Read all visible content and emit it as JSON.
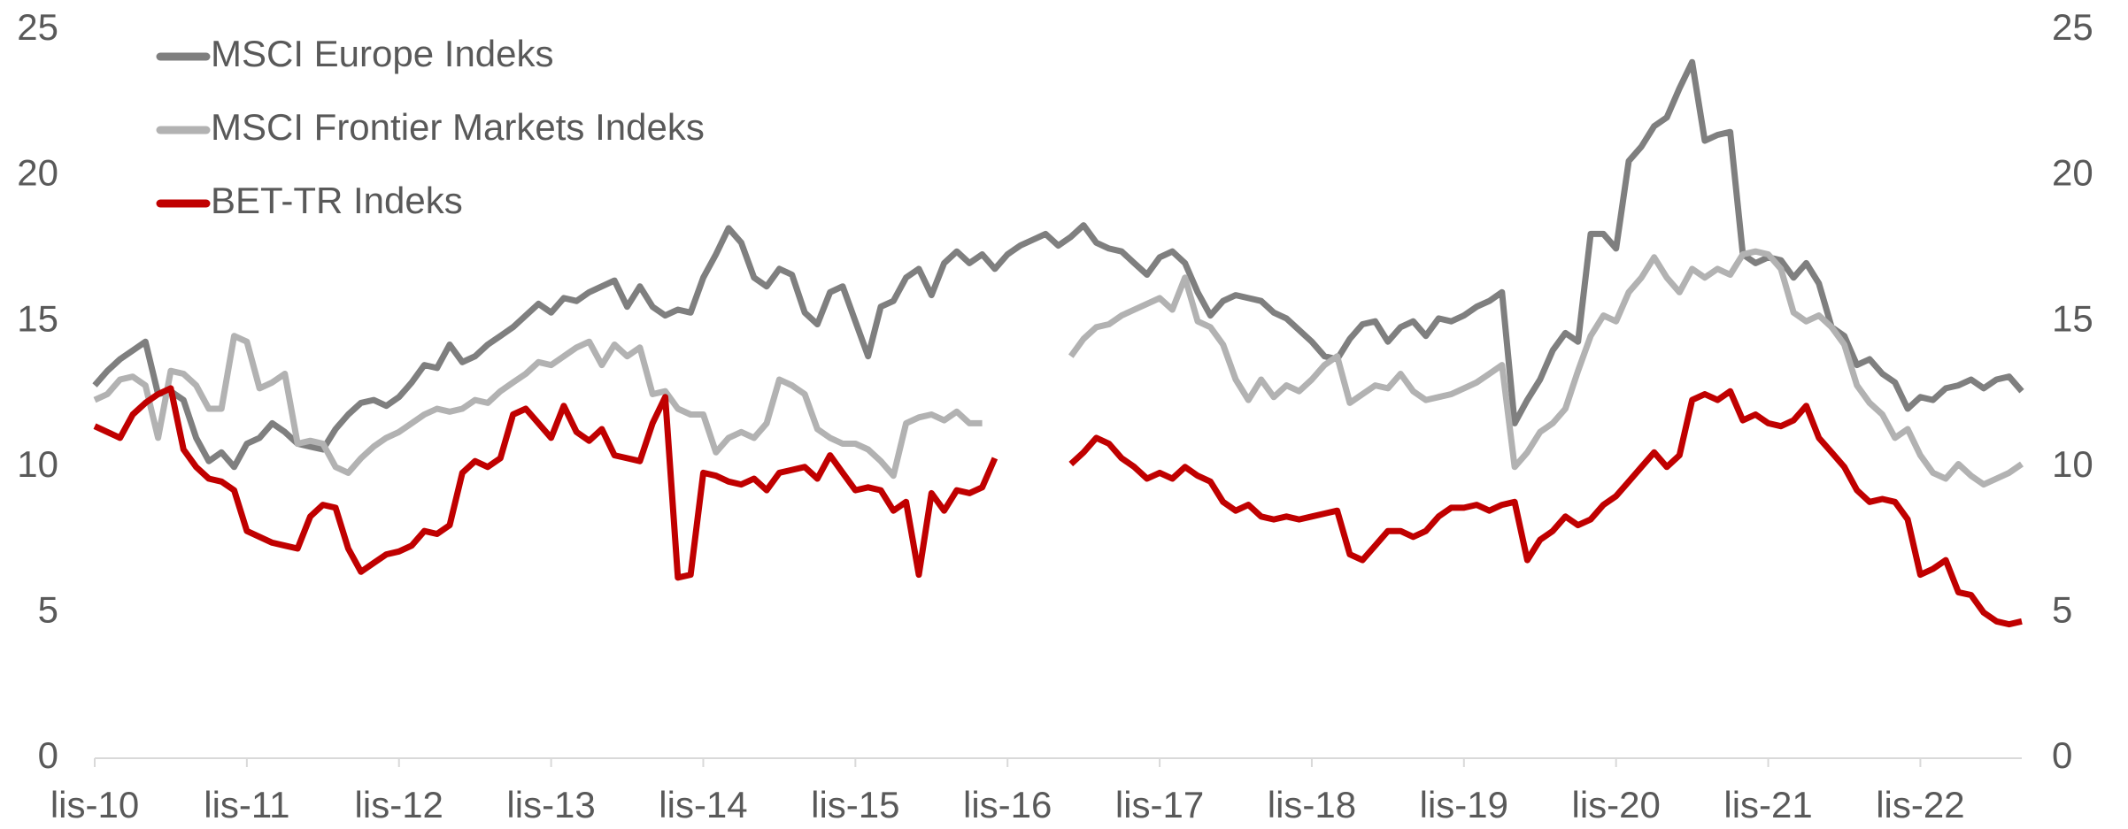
{
  "chart_data": {
    "type": "line",
    "categories": [
      "lis-10",
      null,
      null,
      null,
      null,
      null,
      null,
      null,
      null,
      null,
      null,
      null,
      "lis-11",
      null,
      null,
      null,
      null,
      null,
      null,
      null,
      null,
      null,
      null,
      null,
      "lis-12",
      null,
      null,
      null,
      null,
      null,
      null,
      null,
      null,
      null,
      null,
      null,
      "lis-13",
      null,
      null,
      null,
      null,
      null,
      null,
      null,
      null,
      null,
      null,
      null,
      "lis-14",
      null,
      null,
      null,
      null,
      null,
      null,
      null,
      null,
      null,
      null,
      null,
      "lis-15",
      null,
      null,
      null,
      null,
      null,
      null,
      null,
      null,
      null,
      null,
      null,
      "lis-16",
      null,
      null,
      null,
      null,
      null,
      null,
      null,
      null,
      null,
      null,
      null,
      "lis-17",
      null,
      null,
      null,
      null,
      null,
      null,
      null,
      null,
      null,
      null,
      null,
      "lis-18",
      null,
      null,
      null,
      null,
      null,
      null,
      null,
      null,
      null,
      null,
      null,
      "lis-19",
      null,
      null,
      null,
      null,
      null,
      null,
      null,
      null,
      null,
      null,
      null,
      "lis-20",
      null,
      null,
      null,
      null,
      null,
      null,
      null,
      null,
      null,
      null,
      null,
      "lis-21",
      null,
      null,
      null,
      null,
      null,
      null,
      null,
      null,
      null,
      null,
      null,
      "lis-22",
      null,
      null,
      null,
      null,
      null,
      null,
      null,
      null
    ],
    "series": [
      {
        "name": "MSCI Europe Indeks",
        "color": "#7f7f7f",
        "values": [
          12.8,
          13.3,
          13.7,
          14.0,
          14.3,
          12.5,
          12.6,
          12.3,
          11.0,
          10.2,
          10.5,
          10.0,
          10.8,
          11.0,
          11.5,
          11.2,
          10.8,
          10.7,
          10.6,
          11.3,
          11.8,
          12.2,
          12.3,
          12.1,
          12.4,
          12.9,
          13.5,
          13.4,
          14.2,
          13.6,
          13.8,
          14.2,
          14.5,
          14.8,
          15.2,
          15.6,
          15.3,
          15.8,
          15.7,
          16.0,
          16.2,
          16.4,
          15.5,
          16.2,
          15.5,
          15.2,
          15.4,
          15.3,
          16.5,
          17.3,
          18.2,
          17.7,
          16.5,
          16.2,
          16.8,
          16.6,
          15.3,
          14.9,
          16.0,
          16.2,
          15.0,
          13.8,
          15.5,
          15.7,
          16.5,
          16.8,
          15.9,
          17.0,
          17.4,
          17.0,
          17.3,
          16.8,
          17.3,
          17.6,
          17.8,
          18.0,
          17.6,
          17.9,
          18.3,
          17.7,
          17.5,
          17.4,
          17.0,
          16.6,
          17.2,
          17.4,
          17.0,
          16.0,
          15.2,
          15.7,
          15.9,
          15.8,
          15.7,
          15.3,
          15.1,
          14.7,
          14.3,
          13.8,
          13.7,
          14.4,
          14.9,
          15.0,
          14.3,
          14.8,
          15.0,
          14.5,
          15.1,
          15.0,
          15.2,
          15.5,
          15.7,
          16.0,
          11.5,
          12.3,
          13.0,
          14.0,
          14.6,
          14.3,
          18.0,
          18.0,
          17.5,
          20.5,
          21.0,
          21.7,
          22.0,
          23.0,
          23.9,
          21.2,
          21.4,
          21.5,
          17.3,
          17.0,
          17.2,
          17.1,
          16.5,
          17.0,
          16.3,
          14.8,
          14.5,
          13.5,
          13.7,
          13.2,
          12.9,
          12.0,
          12.4,
          12.3,
          12.7,
          12.8,
          13.0,
          12.7,
          13.0,
          13.1,
          12.6
        ]
      },
      {
        "name": "MSCI Frontier Markets Indeks",
        "color": "#b2b2b2",
        "values": [
          12.3,
          12.5,
          13.0,
          13.1,
          12.8,
          11.0,
          13.3,
          13.2,
          12.8,
          12.0,
          12.0,
          14.5,
          14.3,
          12.7,
          12.9,
          13.2,
          10.8,
          10.9,
          10.8,
          10.0,
          9.8,
          10.3,
          10.7,
          11.0,
          11.2,
          11.5,
          11.8,
          12.0,
          11.9,
          12.0,
          12.3,
          12.2,
          12.6,
          12.9,
          13.2,
          13.6,
          13.5,
          13.8,
          14.1,
          14.3,
          13.5,
          14.2,
          13.8,
          14.1,
          12.5,
          12.6,
          12.0,
          11.8,
          11.8,
          10.5,
          11.0,
          11.2,
          11.0,
          11.5,
          13.0,
          12.8,
          12.5,
          11.3,
          11.0,
          10.8,
          10.8,
          10.6,
          10.2,
          9.7,
          11.5,
          11.7,
          11.8,
          11.6,
          11.9,
          11.5,
          11.5,
          null,
          null,
          null,
          null,
          null,
          null,
          13.8,
          14.4,
          14.8,
          14.9,
          15.2,
          15.4,
          15.6,
          15.8,
          15.4,
          16.5,
          15.0,
          14.8,
          14.2,
          13.0,
          12.3,
          13.0,
          12.4,
          12.8,
          12.6,
          13.0,
          13.5,
          13.8,
          12.2,
          12.5,
          12.8,
          12.7,
          13.2,
          12.6,
          12.3,
          12.4,
          12.5,
          12.7,
          12.9,
          13.2,
          13.5,
          10.0,
          10.5,
          11.2,
          11.5,
          12.0,
          13.3,
          14.5,
          15.2,
          15.0,
          16.0,
          16.5,
          17.2,
          16.5,
          16.0,
          16.8,
          16.5,
          16.8,
          16.6,
          17.3,
          17.4,
          17.3,
          16.8,
          15.3,
          15.0,
          15.2,
          14.8,
          14.2,
          12.8,
          12.2,
          11.8,
          11.0,
          11.3,
          10.4,
          9.8,
          9.6,
          10.1,
          9.7,
          9.4,
          9.6,
          9.8,
          10.1
        ]
      },
      {
        "name": "BET-TR Indeks",
        "color": "#c00000",
        "values": [
          11.4,
          11.2,
          11.0,
          11.8,
          12.2,
          12.5,
          12.7,
          10.6,
          10.0,
          9.6,
          9.5,
          9.2,
          7.8,
          7.6,
          7.4,
          7.3,
          7.2,
          8.3,
          8.7,
          8.6,
          7.2,
          6.4,
          6.7,
          7.0,
          7.1,
          7.3,
          7.8,
          7.7,
          8.0,
          9.8,
          10.2,
          10.0,
          10.3,
          11.8,
          12.0,
          11.5,
          11.0,
          12.1,
          11.2,
          10.9,
          11.3,
          10.4,
          10.3,
          10.2,
          11.5,
          12.4,
          6.2,
          6.3,
          9.8,
          9.7,
          9.5,
          9.4,
          9.6,
          9.2,
          9.8,
          9.9,
          10.0,
          9.6,
          10.4,
          9.8,
          9.2,
          9.3,
          9.2,
          8.5,
          8.8,
          6.3,
          9.1,
          8.5,
          9.2,
          9.1,
          9.3,
          10.3,
          null,
          null,
          null,
          null,
          null,
          10.1,
          10.5,
          11.0,
          10.8,
          10.3,
          10.0,
          9.6,
          9.8,
          9.6,
          10.0,
          9.7,
          9.5,
          8.8,
          8.5,
          8.7,
          8.3,
          8.2,
          8.3,
          8.2,
          8.3,
          8.4,
          8.5,
          7.0,
          6.8,
          7.3,
          7.8,
          7.8,
          7.6,
          7.8,
          8.3,
          8.6,
          8.6,
          8.7,
          8.5,
          8.7,
          8.8,
          6.8,
          7.5,
          7.8,
          8.3,
          8.0,
          8.2,
          8.7,
          9.0,
          9.5,
          10.0,
          10.5,
          10.0,
          10.4,
          12.3,
          12.5,
          12.3,
          12.6,
          11.6,
          11.8,
          11.5,
          11.4,
          11.6,
          12.1,
          11.0,
          10.5,
          10.0,
          9.2,
          8.8,
          8.9,
          8.8,
          8.2,
          6.3,
          6.5,
          6.8,
          5.7,
          5.6,
          5.0,
          4.7,
          4.6,
          4.7
        ]
      }
    ],
    "ylim": [
      0,
      25
    ],
    "yticks": [
      0,
      5,
      10,
      15,
      20,
      25
    ],
    "y2lim": [
      0,
      25
    ],
    "y2ticks": [
      0,
      5,
      10,
      15,
      20,
      25
    ],
    "legend": "top-left",
    "grid": false
  }
}
